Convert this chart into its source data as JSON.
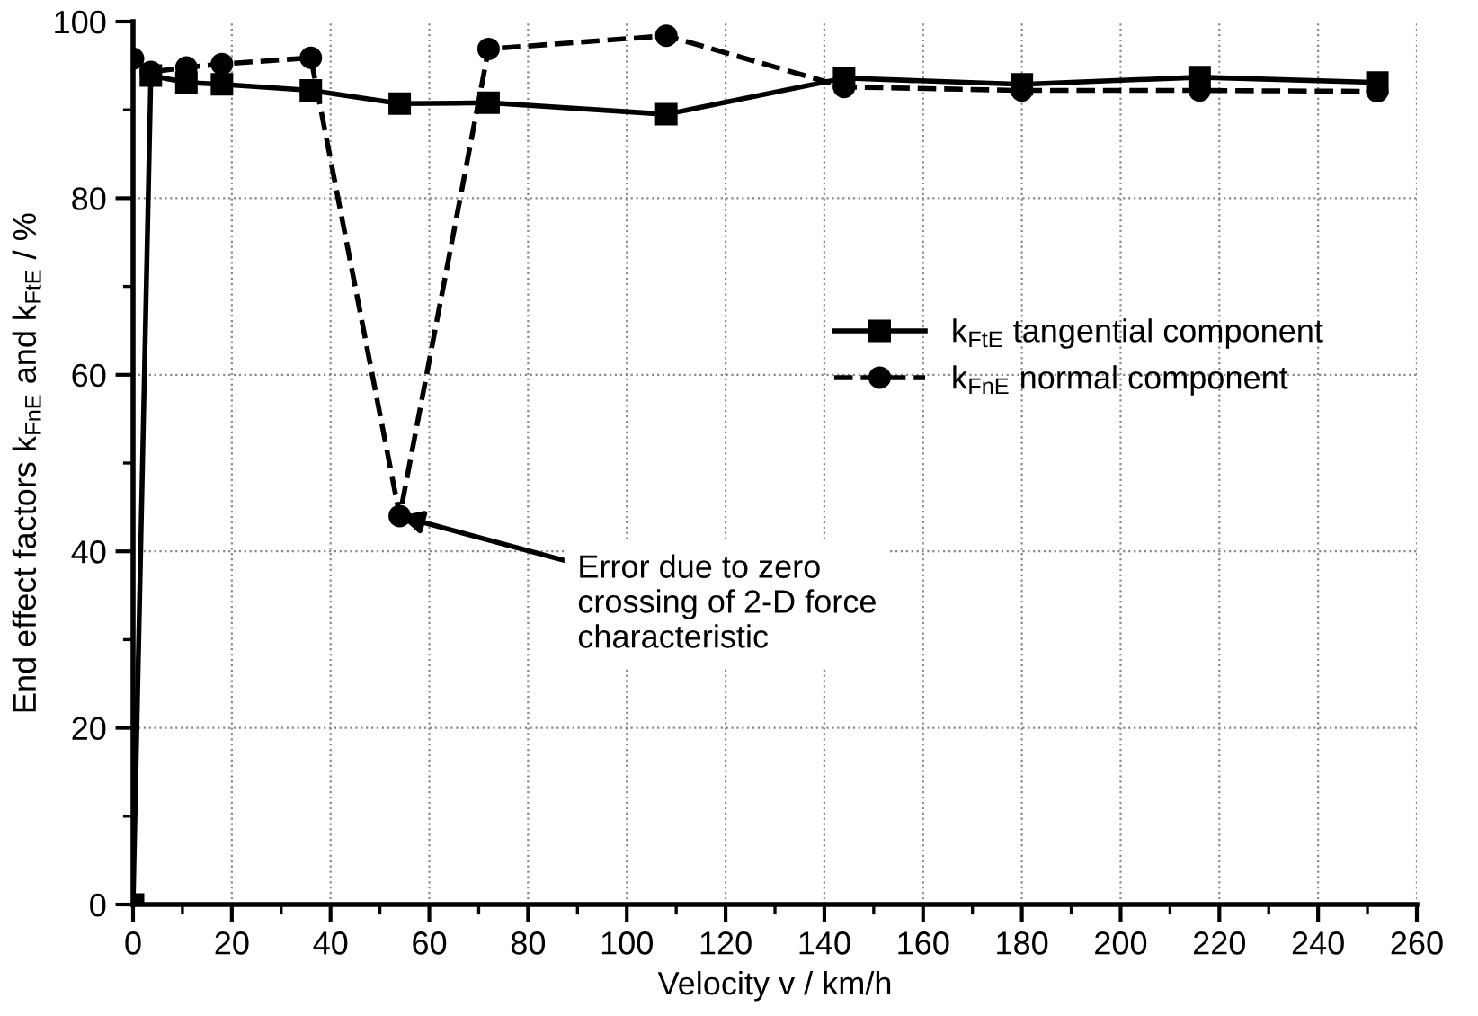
{
  "chart_data": {
    "type": "line",
    "xlabel": "Velocity v / km/h",
    "ylabel": "End effect factors k$_{FnE}$ and k$_{FtE}$ / %",
    "x": [
      0,
      3.6,
      10.8,
      18,
      36,
      54,
      72,
      108,
      144,
      180,
      216,
      252
    ],
    "series": [
      {
        "name": "k$_{FtE}$ tangential component",
        "color": "#000000",
        "marker": "square",
        "line_style": "solid",
        "values": [
          0,
          93.9,
          93.1,
          92.9,
          92.2,
          90.7,
          90.8,
          89.5,
          93.6,
          92.9,
          93.7,
          93.1
        ]
      },
      {
        "name": "k$_{FnE}$ normal component",
        "color": "#000000",
        "marker": "circle",
        "line_style": "dashed",
        "values": [
          95.8,
          94.3,
          94.8,
          95.2,
          95.9,
          44,
          96.9,
          98.4,
          92.6,
          92.2,
          92.2,
          92.1
        ]
      }
    ],
    "xlim": [
      0,
      260
    ],
    "xticks": [
      0,
      {
        "value": 10,
        "label": null
      },
      20,
      {
        "value": 30,
        "label": null
      },
      40,
      {
        "value": 50,
        "label": null
      },
      60,
      {
        "value": 70,
        "label": null
      },
      80,
      {
        "value": 90,
        "label": null
      },
      100,
      {
        "value": 110,
        "label": null
      },
      120,
      {
        "value": 130,
        "label": null
      },
      140,
      {
        "value": 150,
        "label": null
      },
      160,
      {
        "value": 170,
        "label": null
      },
      180,
      {
        "value": 190,
        "label": null
      },
      200,
      {
        "value": 210,
        "label": null
      },
      220,
      {
        "value": 230,
        "label": null
      },
      240,
      {
        "value": 250,
        "label": null
      },
      260
    ],
    "ylim": [
      0,
      100
    ],
    "yticks": [
      0,
      {
        "value": 10,
        "label": null
      },
      20,
      {
        "value": 30,
        "label": null
      },
      40,
      {
        "value": 50,
        "label": null
      },
      60,
      {
        "value": 70,
        "label": null
      },
      80,
      {
        "value": 90,
        "label": null
      },
      100
    ],
    "annotations": [
      {
        "text": "Error due to zero\ncrossing of 2-D force\ncharacteristic",
        "x": 54,
        "y": 44
      }
    ],
    "grid": true,
    "legend": "right"
  }
}
